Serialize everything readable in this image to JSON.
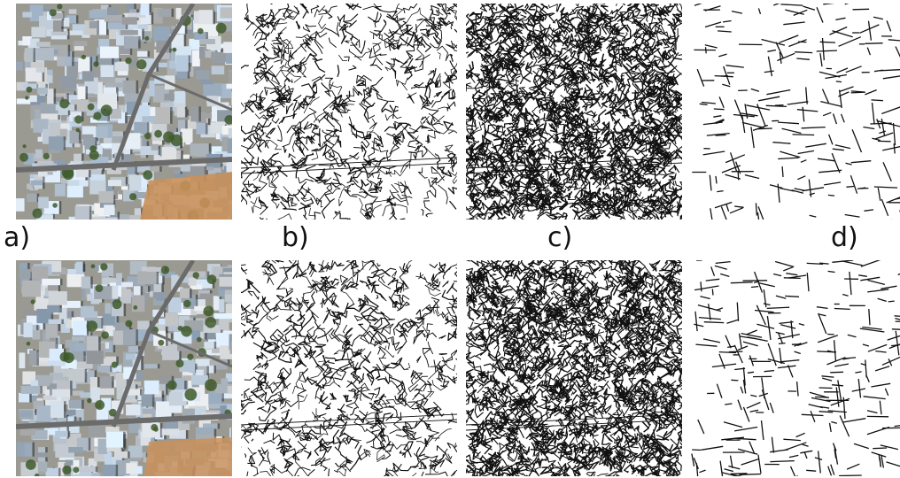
{
  "labels": {
    "a": "a)",
    "b": "b)",
    "c": "c)",
    "d": "d)"
  },
  "colors": {
    "background": "#ffffff",
    "ink": "#111111",
    "satellite_road": "#6b6b6b",
    "satellite_roof": "#d9dde3",
    "satellite_vegetation": "#3f5a2c",
    "satellite_soil": "#c9905a"
  }
}
